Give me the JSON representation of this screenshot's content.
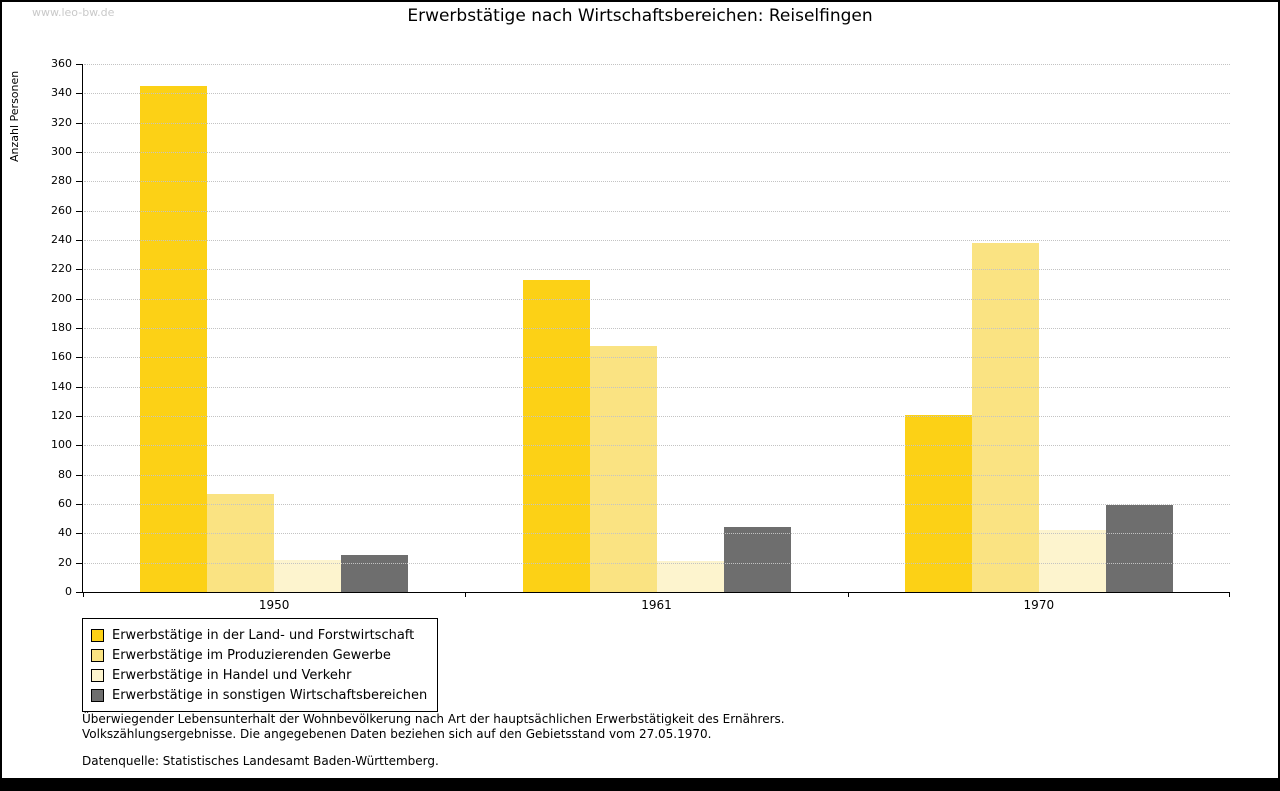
{
  "watermark": "www.leo-bw.de",
  "title": "Erwerbstätige nach Wirtschaftsbereichen: Reiselfingen",
  "chart_data": {
    "type": "bar",
    "title": "Erwerbstätige nach Wirtschaftsbereichen: Reiselfingen",
    "xlabel": "",
    "ylabel": "Anzahl Personen",
    "categories": [
      "1950",
      "1961",
      "1970"
    ],
    "series": [
      {
        "name": "Erwerbstätige in der Land- und Forstwirtschaft",
        "color": "#FCD116",
        "values": [
          345,
          213,
          121
        ]
      },
      {
        "name": "Erwerbstätige im Produzierenden Gewerbe",
        "color": "#FAE382",
        "values": [
          67,
          168,
          238
        ]
      },
      {
        "name": "Erwerbstätige in Handel und Verkehr",
        "color": "#FDF4CE",
        "values": [
          22,
          21,
          42
        ]
      },
      {
        "name": "Erwerbstätige in sonstigen Wirtschaftsbereichen",
        "color": "#6E6E6E",
        "values": [
          25,
          44,
          59
        ]
      }
    ],
    "ylim": [
      0,
      360
    ],
    "ytick_step": 20,
    "grid": true,
    "legend_position": "bottom-left"
  },
  "footnote": {
    "line1": "Überwiegender Lebensunterhalt der Wohnbevölkerung nach Art der hauptsächlichen Erwerbstätigkeit des Ernährers.",
    "line2": "Volkszählungsergebnisse. Die angegebenen Daten beziehen sich auf den Gebietsstand vom 27.05.1970.",
    "source": "Datenquelle: Statistisches Landesamt Baden-Württemberg."
  }
}
